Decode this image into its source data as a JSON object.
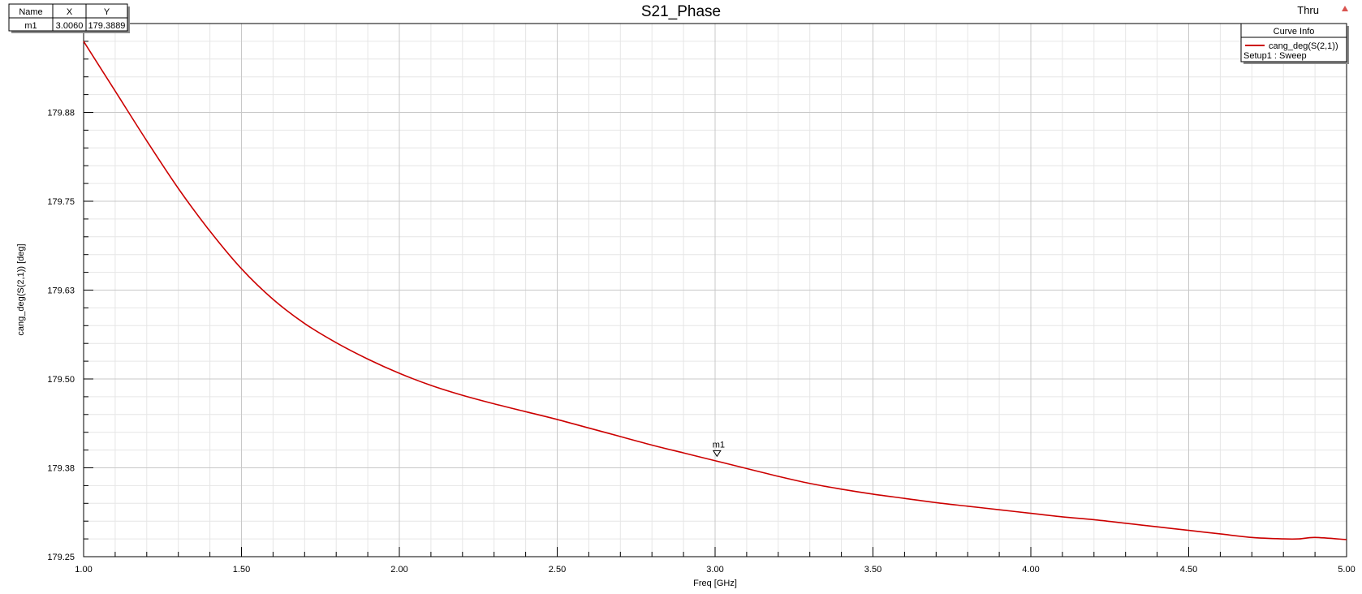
{
  "report": {
    "design_name": "Thru"
  },
  "marker_table": {
    "headers": [
      "Name",
      "X",
      "Y"
    ],
    "rows": [
      [
        "m1",
        "3.0060",
        "179.3889"
      ]
    ]
  },
  "legend": {
    "header": "Curve Info",
    "entries": [
      {
        "label": "cang_deg(S(2,1))",
        "sublabel": "Setup1 : Sweep",
        "color": "#cc0000"
      }
    ]
  },
  "colors": {
    "curve": "#cc0000",
    "grid_major": "#c8c8c8",
    "grid_minor": "#e6e6e6",
    "axis": "#000000"
  },
  "chart_data": {
    "type": "line",
    "title": "S21_Phase",
    "xlabel": "Freq [GHz]",
    "ylabel": "cang_deg(S(2,1)) [deg]",
    "xlim": [
      1.0,
      5.0
    ],
    "ylim": [
      179.25,
      180.0
    ],
    "xticks": [
      1.0,
      1.5,
      2.0,
      2.5,
      3.0,
      3.5,
      4.0,
      4.5,
      5.0
    ],
    "xtick_labels": [
      "1.00",
      "1.50",
      "2.00",
      "2.50",
      "3.00",
      "3.50",
      "4.00",
      "4.50",
      "5.00"
    ],
    "yticks": [
      179.25,
      179.38,
      179.5,
      179.63,
      179.75,
      179.88
    ],
    "ytick_labels": [
      "179.25",
      "179.38",
      "179.50",
      "179.63",
      "179.75",
      "179.88"
    ],
    "grid": true,
    "legend_position": "top-right",
    "series": [
      {
        "name": "cang_deg(S(2,1))",
        "x": [
          1.0,
          1.1,
          1.2,
          1.3,
          1.4,
          1.5,
          1.6,
          1.7,
          1.8,
          1.9,
          2.0,
          2.1,
          2.2,
          2.3,
          2.4,
          2.5,
          2.6,
          2.7,
          2.8,
          2.9,
          3.0,
          3.1,
          3.2,
          3.3,
          3.4,
          3.5,
          3.6,
          3.7,
          3.8,
          3.9,
          4.0,
          4.1,
          4.2,
          4.3,
          4.4,
          4.5,
          4.6,
          4.7,
          4.8,
          4.85,
          4.9,
          5.0
        ],
        "y": [
          179.975,
          179.905,
          179.835,
          179.768,
          179.708,
          179.655,
          179.612,
          179.578,
          179.551,
          179.528,
          179.508,
          179.491,
          179.477,
          179.465,
          179.454,
          179.443,
          179.431,
          179.419,
          179.407,
          179.396,
          179.385,
          179.374,
          179.363,
          179.353,
          179.345,
          179.338,
          179.332,
          179.326,
          179.321,
          179.316,
          179.311,
          179.306,
          179.302,
          179.297,
          179.292,
          179.287,
          179.282,
          179.277,
          179.275,
          179.275,
          179.277,
          179.274
        ]
      }
    ],
    "markers": [
      {
        "name": "m1",
        "x": 3.006,
        "y": 179.3889
      }
    ]
  }
}
